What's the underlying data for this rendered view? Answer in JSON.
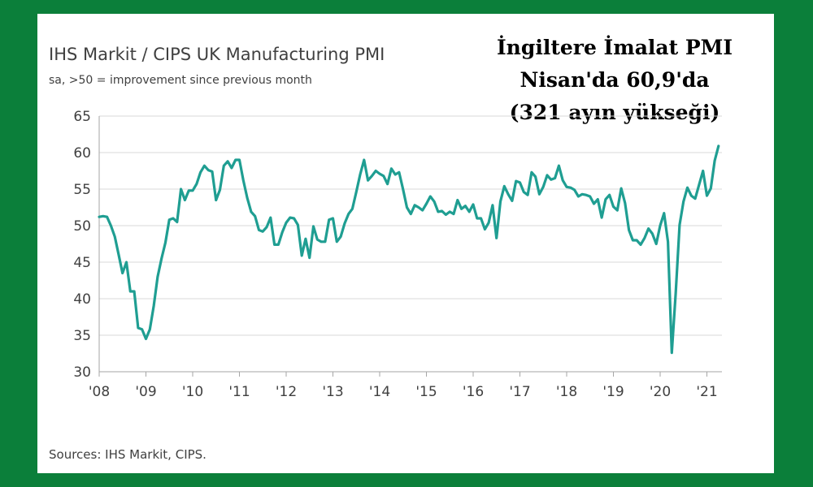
{
  "colors": {
    "frame": "#0b7f3a",
    "card": "#ffffff",
    "line": "#1f9e92",
    "grid": "#d9d9d9",
    "axis_text": "#404040"
  },
  "headline": {
    "line1": "İngiltere İmalat PMI",
    "line2": "Nisan'da 60,9'da",
    "line3": "(321 ayın yükseği)"
  },
  "source_note": "Sources: IHS Markit, CIPS.",
  "chart_data": {
    "type": "line",
    "title": "IHS Markit / CIPS UK Manufacturing PMI",
    "subtitle": "sa, >50 = improvement since previous month",
    "xlabel": "",
    "ylabel": "",
    "ylim": [
      30,
      65
    ],
    "yticks": [
      30,
      35,
      40,
      45,
      50,
      55,
      60,
      65
    ],
    "xlim": [
      2008.0,
      2021.25
    ],
    "xticks": [
      {
        "value": 2008,
        "label": "'08"
      },
      {
        "value": 2009,
        "label": "'09"
      },
      {
        "value": 2010,
        "label": "'10"
      },
      {
        "value": 2011,
        "label": "'11"
      },
      {
        "value": 2012,
        "label": "'12"
      },
      {
        "value": 2013,
        "label": "'13"
      },
      {
        "value": 2014,
        "label": "'14"
      },
      {
        "value": 2015,
        "label": "'15"
      },
      {
        "value": 2016,
        "label": "'16"
      },
      {
        "value": 2017,
        "label": "'17"
      },
      {
        "value": 2018,
        "label": "'18"
      },
      {
        "value": 2019,
        "label": "'19"
      },
      {
        "value": 2020,
        "label": "'20"
      },
      {
        "value": 2021,
        "label": "'21"
      }
    ],
    "grid": "horizontal",
    "series": [
      {
        "name": "UK Manufacturing PMI",
        "x_start": 2008.0,
        "x_step": 0.08333,
        "values": [
          51.2,
          51.3,
          51.2,
          50.0,
          48.5,
          46.0,
          43.5,
          45.0,
          41.0,
          41.0,
          36.0,
          35.8,
          34.5,
          35.8,
          39.0,
          43.0,
          45.5,
          47.7,
          50.8,
          51.0,
          50.5,
          55.0,
          53.5,
          54.8,
          54.8,
          55.7,
          57.3,
          58.2,
          57.6,
          57.4,
          53.5,
          54.9,
          58.2,
          58.8,
          57.9,
          59.0,
          59.0,
          56.2,
          53.8,
          51.9,
          51.3,
          49.4,
          49.2,
          49.8,
          51.1,
          47.4,
          47.4,
          49.1,
          50.4,
          51.1,
          51.0,
          50.1,
          45.9,
          48.2,
          45.6,
          49.9,
          48.1,
          47.8,
          47.8,
          50.8,
          51.0,
          47.8,
          48.5,
          50.3,
          51.6,
          52.3,
          54.6,
          57.0,
          59.0,
          56.2,
          56.8,
          57.5,
          57.1,
          56.8,
          55.7,
          57.8,
          57.0,
          57.3,
          55.0,
          52.5,
          51.6,
          52.8,
          52.5,
          52.1,
          53.0,
          54.0,
          53.3,
          51.9,
          52.0,
          51.5,
          51.9,
          51.6,
          53.5,
          52.3,
          52.7,
          51.9,
          52.9,
          51.0,
          51.0,
          49.5,
          50.4,
          52.8,
          48.3,
          53.3,
          55.4,
          54.3,
          53.4,
          56.1,
          55.9,
          54.6,
          54.2,
          57.3,
          56.7,
          54.3,
          55.3,
          56.9,
          56.3,
          56.5,
          58.2,
          56.2,
          55.3,
          55.2,
          54.9,
          54.0,
          54.3,
          54.2,
          54.0,
          53.0,
          53.6,
          51.1,
          53.6,
          54.2,
          52.6,
          52.1,
          55.1,
          53.1,
          49.4,
          48.0,
          48.0,
          47.4,
          48.3,
          49.6,
          48.9,
          47.5,
          50.0,
          51.7,
          47.8,
          32.6,
          40.7,
          50.1,
          53.3,
          55.2,
          54.1,
          53.7,
          55.6,
          57.5,
          54.1,
          55.1,
          58.9,
          60.9
        ]
      }
    ],
    "headline_value": 60.9,
    "headline_month": "Nisan"
  }
}
